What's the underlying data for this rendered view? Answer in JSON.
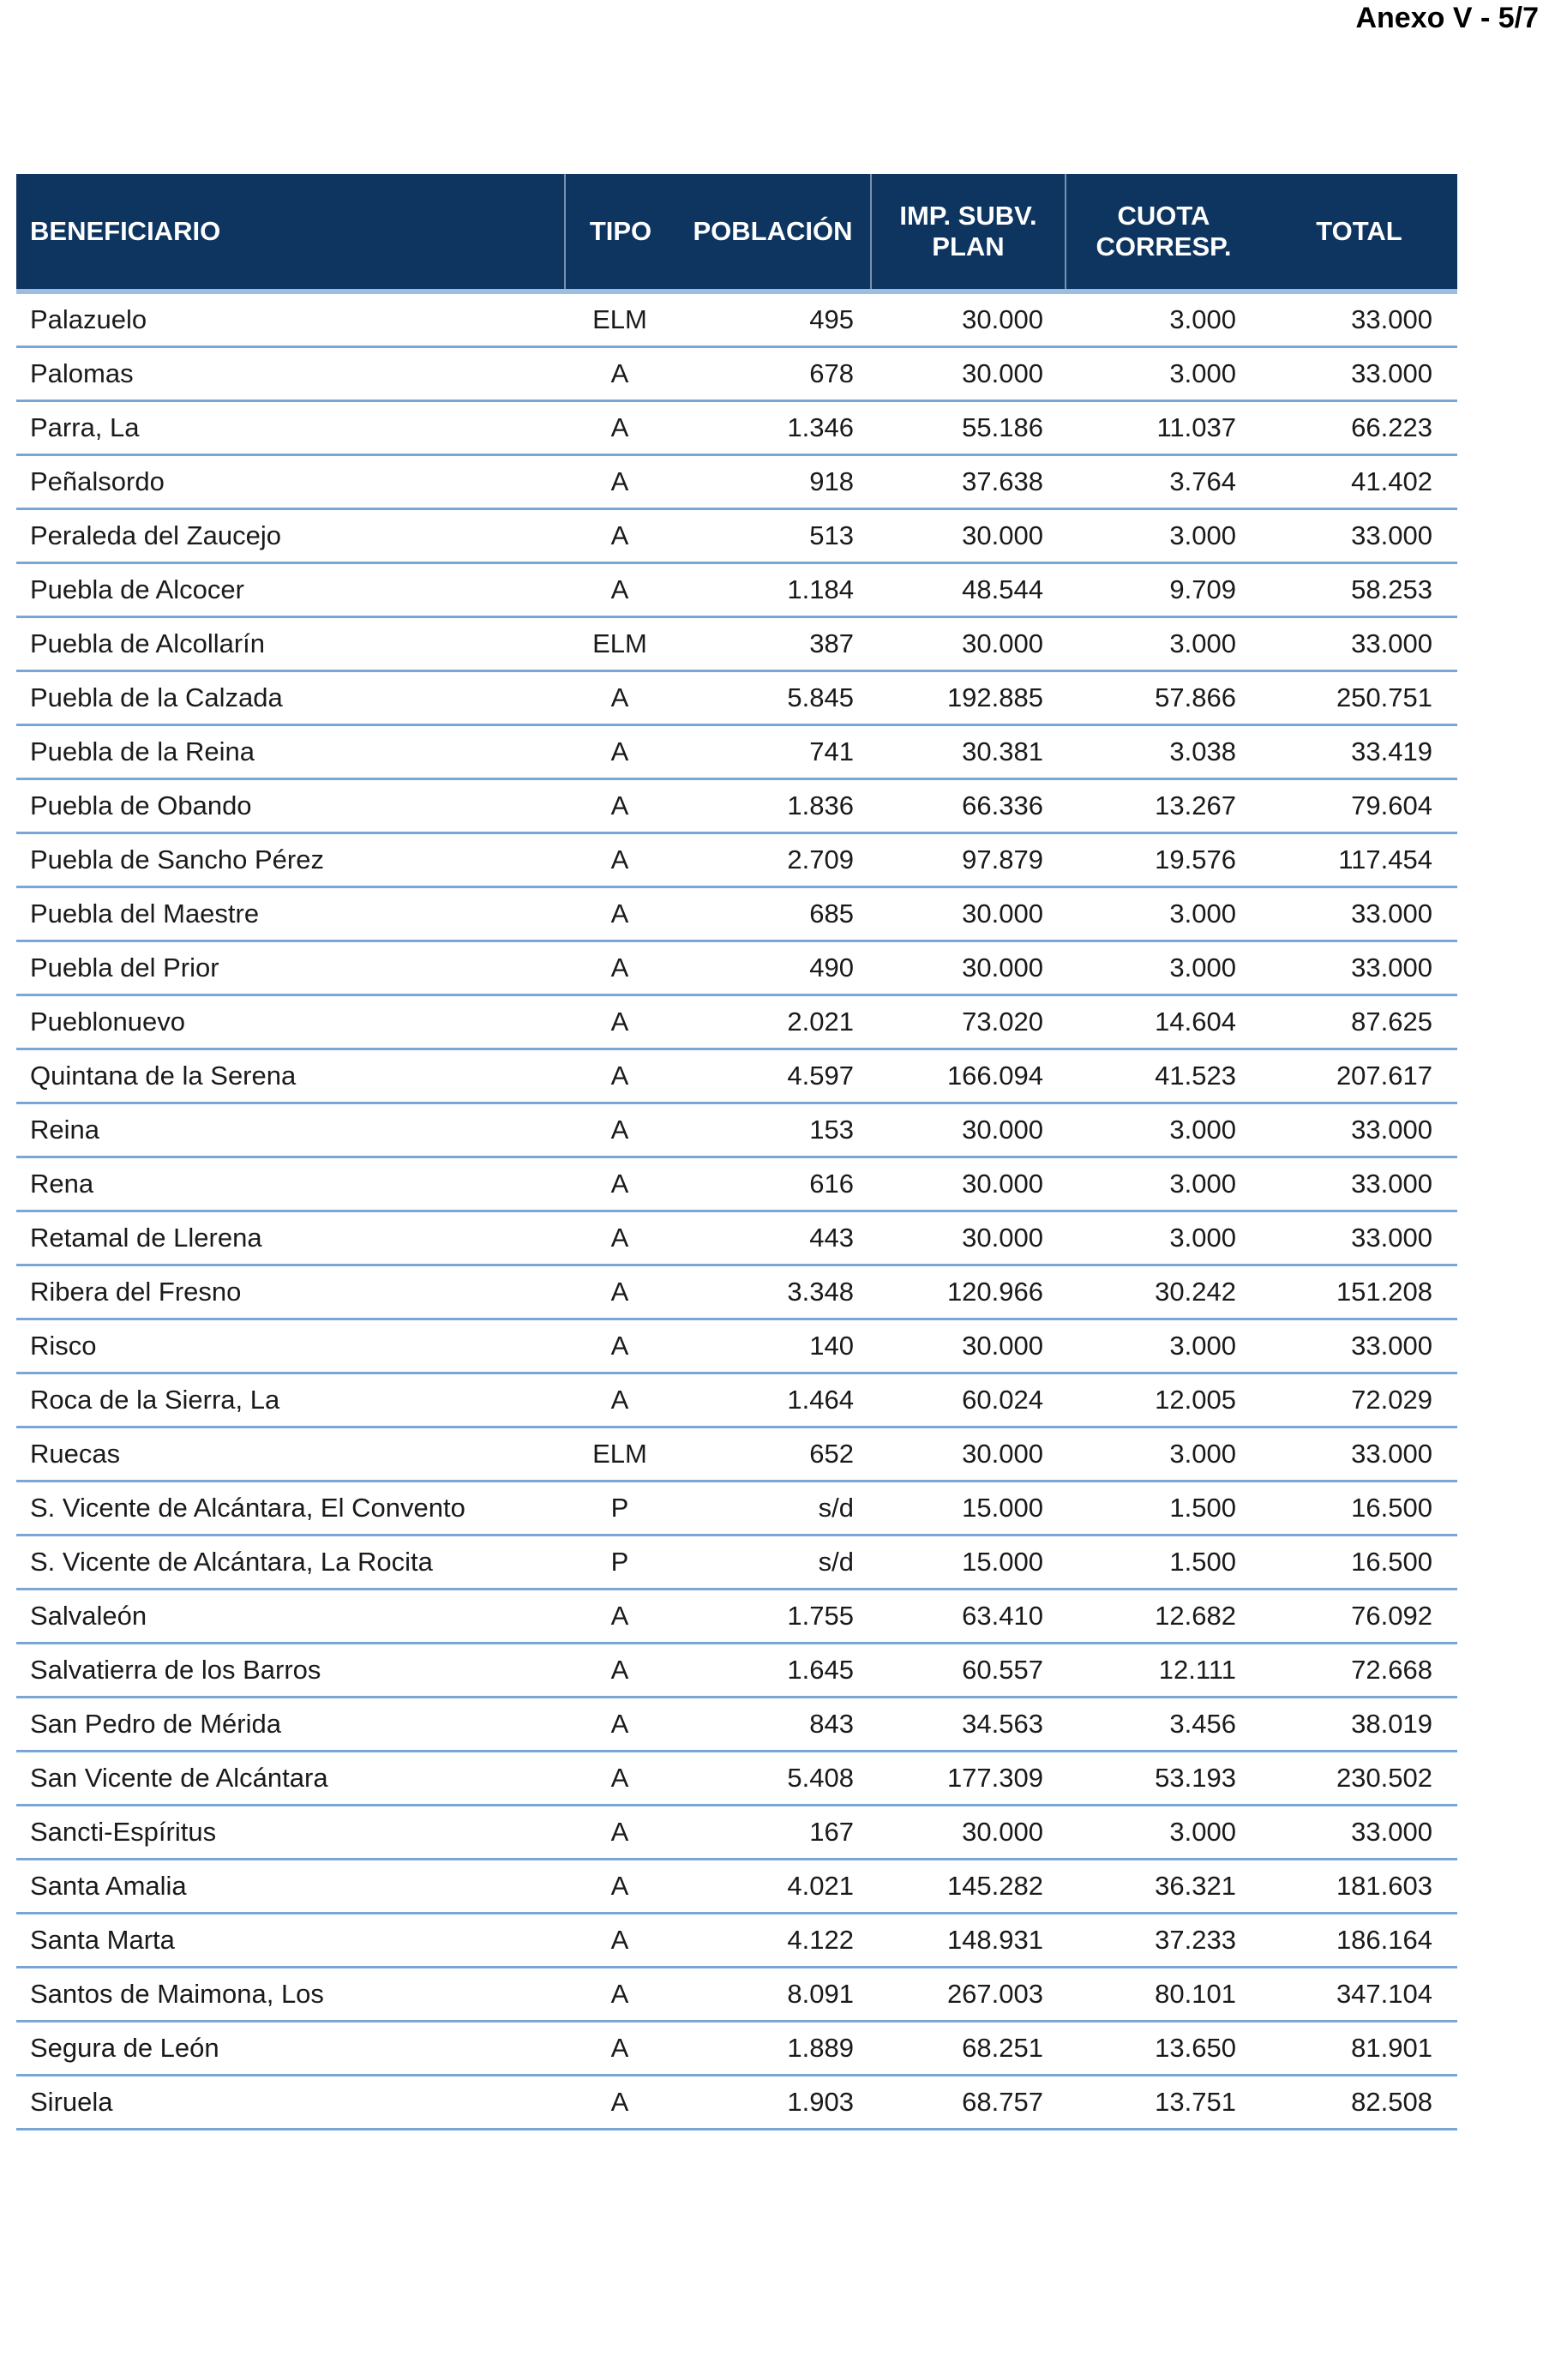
{
  "page": {
    "annex_label": "Anexo V - 5/7"
  },
  "colors": {
    "header_bg": "#0d3560",
    "header_text": "#ffffff",
    "header_underline": "#9cbce2",
    "row_separator": "#7aa6d6",
    "body_text": "#1a1a1a"
  },
  "table": {
    "columns": [
      "BENEFICIARIO",
      "TIPO",
      "POBLACIÓN",
      "IMP. SUBV.\nPLAN",
      "CUOTA\nCORRESP.",
      "TOTAL"
    ],
    "rows": [
      {
        "name": "Palazuelo",
        "tipo": "ELM",
        "poblacion": "495",
        "imp": "30.000",
        "cuota": "3.000",
        "total": "33.000"
      },
      {
        "name": "Palomas",
        "tipo": "A",
        "poblacion": "678",
        "imp": "30.000",
        "cuota": "3.000",
        "total": "33.000"
      },
      {
        "name": "Parra, La",
        "tipo": "A",
        "poblacion": "1.346",
        "imp": "55.186",
        "cuota": "11.037",
        "total": "66.223"
      },
      {
        "name": "Peñalsordo",
        "tipo": "A",
        "poblacion": "918",
        "imp": "37.638",
        "cuota": "3.764",
        "total": "41.402"
      },
      {
        "name": "Peraleda del Zaucejo",
        "tipo": "A",
        "poblacion": "513",
        "imp": "30.000",
        "cuota": "3.000",
        "total": "33.000"
      },
      {
        "name": "Puebla de Alcocer",
        "tipo": "A",
        "poblacion": "1.184",
        "imp": "48.544",
        "cuota": "9.709",
        "total": "58.253"
      },
      {
        "name": "Puebla de Alcollarín",
        "tipo": "ELM",
        "poblacion": "387",
        "imp": "30.000",
        "cuota": "3.000",
        "total": "33.000"
      },
      {
        "name": "Puebla de la Calzada",
        "tipo": "A",
        "poblacion": "5.845",
        "imp": "192.885",
        "cuota": "57.866",
        "total": "250.751"
      },
      {
        "name": "Puebla de la Reina",
        "tipo": "A",
        "poblacion": "741",
        "imp": "30.381",
        "cuota": "3.038",
        "total": "33.419"
      },
      {
        "name": "Puebla de Obando",
        "tipo": "A",
        "poblacion": "1.836",
        "imp": "66.336",
        "cuota": "13.267",
        "total": "79.604"
      },
      {
        "name": "Puebla de Sancho Pérez",
        "tipo": "A",
        "poblacion": "2.709",
        "imp": "97.879",
        "cuota": "19.576",
        "total": "117.454"
      },
      {
        "name": "Puebla del Maestre",
        "tipo": "A",
        "poblacion": "685",
        "imp": "30.000",
        "cuota": "3.000",
        "total": "33.000"
      },
      {
        "name": "Puebla del Prior",
        "tipo": "A",
        "poblacion": "490",
        "imp": "30.000",
        "cuota": "3.000",
        "total": "33.000"
      },
      {
        "name": "Pueblonuevo",
        "tipo": "A",
        "poblacion": "2.021",
        "imp": "73.020",
        "cuota": "14.604",
        "total": "87.625"
      },
      {
        "name": "Quintana de la Serena",
        "tipo": "A",
        "poblacion": "4.597",
        "imp": "166.094",
        "cuota": "41.523",
        "total": "207.617"
      },
      {
        "name": "Reina",
        "tipo": "A",
        "poblacion": "153",
        "imp": "30.000",
        "cuota": "3.000",
        "total": "33.000"
      },
      {
        "name": "Rena",
        "tipo": "A",
        "poblacion": "616",
        "imp": "30.000",
        "cuota": "3.000",
        "total": "33.000"
      },
      {
        "name": "Retamal de Llerena",
        "tipo": "A",
        "poblacion": "443",
        "imp": "30.000",
        "cuota": "3.000",
        "total": "33.000"
      },
      {
        "name": "Ribera del Fresno",
        "tipo": "A",
        "poblacion": "3.348",
        "imp": "120.966",
        "cuota": "30.242",
        "total": "151.208"
      },
      {
        "name": "Risco",
        "tipo": "A",
        "poblacion": "140",
        "imp": "30.000",
        "cuota": "3.000",
        "total": "33.000"
      },
      {
        "name": "Roca de la Sierra, La",
        "tipo": "A",
        "poblacion": "1.464",
        "imp": "60.024",
        "cuota": "12.005",
        "total": "72.029"
      },
      {
        "name": "Ruecas",
        "tipo": "ELM",
        "poblacion": "652",
        "imp": "30.000",
        "cuota": "3.000",
        "total": "33.000"
      },
      {
        "name": "S. Vicente de Alcántara, El Convento",
        "tipo": "P",
        "poblacion": "s/d",
        "imp": "15.000",
        "cuota": "1.500",
        "total": "16.500"
      },
      {
        "name": "S. Vicente de Alcántara, La Rocita",
        "tipo": "P",
        "poblacion": "s/d",
        "imp": "15.000",
        "cuota": "1.500",
        "total": "16.500"
      },
      {
        "name": "Salvaleón",
        "tipo": "A",
        "poblacion": "1.755",
        "imp": "63.410",
        "cuota": "12.682",
        "total": "76.092"
      },
      {
        "name": "Salvatierra de los Barros",
        "tipo": "A",
        "poblacion": "1.645",
        "imp": "60.557",
        "cuota": "12.111",
        "total": "72.668"
      },
      {
        "name": "San Pedro de Mérida",
        "tipo": "A",
        "poblacion": "843",
        "imp": "34.563",
        "cuota": "3.456",
        "total": "38.019"
      },
      {
        "name": "San Vicente de Alcántara",
        "tipo": "A",
        "poblacion": "5.408",
        "imp": "177.309",
        "cuota": "53.193",
        "total": "230.502"
      },
      {
        "name": "Sancti-Espíritus",
        "tipo": "A",
        "poblacion": "167",
        "imp": "30.000",
        "cuota": "3.000",
        "total": "33.000"
      },
      {
        "name": "Santa Amalia",
        "tipo": "A",
        "poblacion": "4.021",
        "imp": "145.282",
        "cuota": "36.321",
        "total": "181.603"
      },
      {
        "name": "Santa Marta",
        "tipo": "A",
        "poblacion": "4.122",
        "imp": "148.931",
        "cuota": "37.233",
        "total": "186.164"
      },
      {
        "name": "Santos de Maimona, Los",
        "tipo": "A",
        "poblacion": "8.091",
        "imp": "267.003",
        "cuota": "80.101",
        "total": "347.104"
      },
      {
        "name": "Segura de León",
        "tipo": "A",
        "poblacion": "1.889",
        "imp": "68.251",
        "cuota": "13.650",
        "total": "81.901"
      },
      {
        "name": "Siruela",
        "tipo": "A",
        "poblacion": "1.903",
        "imp": "68.757",
        "cuota": "13.751",
        "total": "82.508"
      }
    ]
  }
}
